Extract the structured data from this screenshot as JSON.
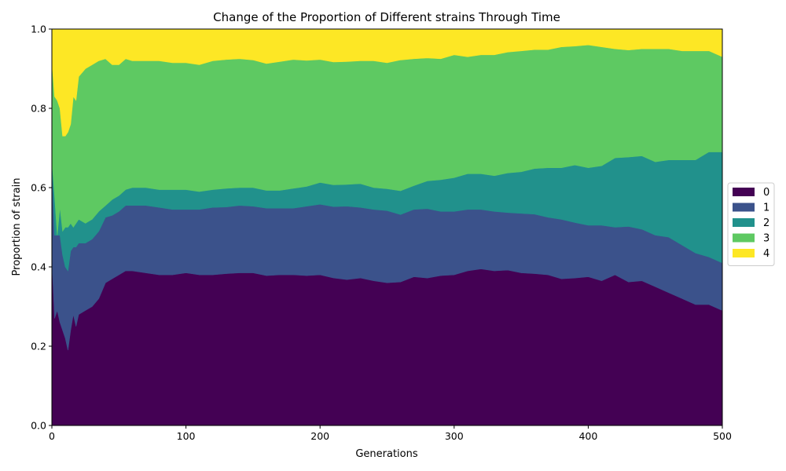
{
  "chart_data": {
    "type": "area",
    "stacked": true,
    "title": "Change of the Proportion of Different strains Through Time",
    "xlabel": "Generations",
    "ylabel": "Proportion of strain",
    "xlim": [
      0,
      500
    ],
    "ylim": [
      0,
      1
    ],
    "xticks": [
      0,
      100,
      200,
      300,
      400,
      500
    ],
    "yticks": [
      0.0,
      0.2,
      0.4,
      0.6,
      0.8,
      1.0
    ],
    "xtick_labels": [
      "0",
      "100",
      "200",
      "300",
      "400",
      "500"
    ],
    "ytick_labels": [
      "0.0",
      "0.2",
      "0.4",
      "0.6",
      "0.8",
      "1.0"
    ],
    "grid": false,
    "legend_position": "right-center-outside",
    "x": [
      0,
      2,
      4,
      6,
      8,
      10,
      12,
      14,
      16,
      18,
      20,
      25,
      30,
      35,
      40,
      45,
      50,
      55,
      60,
      70,
      80,
      90,
      100,
      110,
      120,
      130,
      140,
      150,
      160,
      170,
      180,
      190,
      200,
      210,
      220,
      230,
      240,
      250,
      260,
      270,
      280,
      290,
      300,
      310,
      320,
      330,
      340,
      350,
      360,
      370,
      380,
      390,
      400,
      410,
      420,
      430,
      440,
      450,
      460,
      470,
      480,
      490,
      500
    ],
    "series": [
      {
        "name": "0",
        "color": "#440154",
        "values": [
          0.42,
          0.27,
          0.29,
          0.26,
          0.24,
          0.22,
          0.19,
          0.24,
          0.28,
          0.25,
          0.28,
          0.29,
          0.3,
          0.32,
          0.36,
          0.37,
          0.38,
          0.39,
          0.39,
          0.385,
          0.38,
          0.38,
          0.385,
          0.38,
          0.38,
          0.383,
          0.385,
          0.385,
          0.378,
          0.38,
          0.38,
          0.378,
          0.38,
          0.372,
          0.368,
          0.372,
          0.365,
          0.36,
          0.362,
          0.375,
          0.372,
          0.378,
          0.38,
          0.39,
          0.395,
          0.39,
          0.392,
          0.385,
          0.383,
          0.38,
          0.37,
          0.372,
          0.375,
          0.365,
          0.38,
          0.362,
          0.365,
          0.35,
          0.335,
          0.32,
          0.305,
          0.305,
          0.29
        ]
      },
      {
        "name": "1",
        "color": "#3b528b",
        "values": [
          0.25,
          0.21,
          0.19,
          0.22,
          0.19,
          0.18,
          0.2,
          0.2,
          0.17,
          0.2,
          0.18,
          0.17,
          0.17,
          0.17,
          0.165,
          0.16,
          0.16,
          0.165,
          0.165,
          0.17,
          0.17,
          0.165,
          0.16,
          0.165,
          0.17,
          0.168,
          0.17,
          0.168,
          0.17,
          0.168,
          0.168,
          0.175,
          0.178,
          0.18,
          0.185,
          0.178,
          0.18,
          0.182,
          0.17,
          0.17,
          0.175,
          0.162,
          0.16,
          0.155,
          0.15,
          0.15,
          0.145,
          0.15,
          0.15,
          0.145,
          0.15,
          0.14,
          0.13,
          0.14,
          0.12,
          0.14,
          0.13,
          0.13,
          0.14,
          0.135,
          0.13,
          0.12,
          0.12
        ]
      },
      {
        "name": "2",
        "color": "#21918c",
        "values": [
          0.0,
          0.1,
          0.0,
          0.07,
          0.06,
          0.1,
          0.11,
          0.07,
          0.05,
          0.06,
          0.06,
          0.05,
          0.05,
          0.05,
          0.03,
          0.04,
          0.04,
          0.04,
          0.045,
          0.045,
          0.045,
          0.05,
          0.05,
          0.045,
          0.045,
          0.047,
          0.045,
          0.047,
          0.045,
          0.045,
          0.05,
          0.05,
          0.055,
          0.055,
          0.055,
          0.06,
          0.055,
          0.055,
          0.06,
          0.06,
          0.07,
          0.08,
          0.085,
          0.09,
          0.09,
          0.09,
          0.1,
          0.105,
          0.115,
          0.125,
          0.13,
          0.145,
          0.145,
          0.15,
          0.175,
          0.175,
          0.185,
          0.185,
          0.195,
          0.215,
          0.235,
          0.265,
          0.28
        ]
      },
      {
        "name": "3",
        "color": "#5ec962",
        "values": [
          0.25,
          0.25,
          0.34,
          0.25,
          0.24,
          0.23,
          0.24,
          0.25,
          0.33,
          0.31,
          0.36,
          0.39,
          0.39,
          0.38,
          0.37,
          0.34,
          0.33,
          0.33,
          0.32,
          0.32,
          0.325,
          0.32,
          0.32,
          0.32,
          0.325,
          0.325,
          0.325,
          0.322,
          0.32,
          0.325,
          0.325,
          0.318,
          0.31,
          0.31,
          0.31,
          0.31,
          0.32,
          0.318,
          0.33,
          0.32,
          0.31,
          0.305,
          0.31,
          0.295,
          0.3,
          0.305,
          0.305,
          0.305,
          0.3,
          0.298,
          0.305,
          0.3,
          0.31,
          0.3,
          0.275,
          0.27,
          0.27,
          0.285,
          0.28,
          0.275,
          0.275,
          0.255,
          0.24
        ]
      },
      {
        "name": "4",
        "color": "#fde725",
        "values": [
          0.08,
          0.17,
          0.18,
          0.2,
          0.27,
          0.27,
          0.26,
          0.24,
          0.17,
          0.18,
          0.12,
          0.1,
          0.09,
          0.08,
          0.075,
          0.09,
          0.09,
          0.075,
          0.08,
          0.08,
          0.08,
          0.085,
          0.085,
          0.09,
          0.08,
          0.077,
          0.075,
          0.078,
          0.087,
          0.082,
          0.077,
          0.079,
          0.077,
          0.083,
          0.082,
          0.08,
          0.08,
          0.085,
          0.078,
          0.075,
          0.073,
          0.075,
          0.065,
          0.07,
          0.065,
          0.065,
          0.058,
          0.055,
          0.052,
          0.052,
          0.045,
          0.043,
          0.04,
          0.045,
          0.05,
          0.053,
          0.05,
          0.05,
          0.05,
          0.055,
          0.055,
          0.055,
          0.07
        ]
      }
    ]
  }
}
